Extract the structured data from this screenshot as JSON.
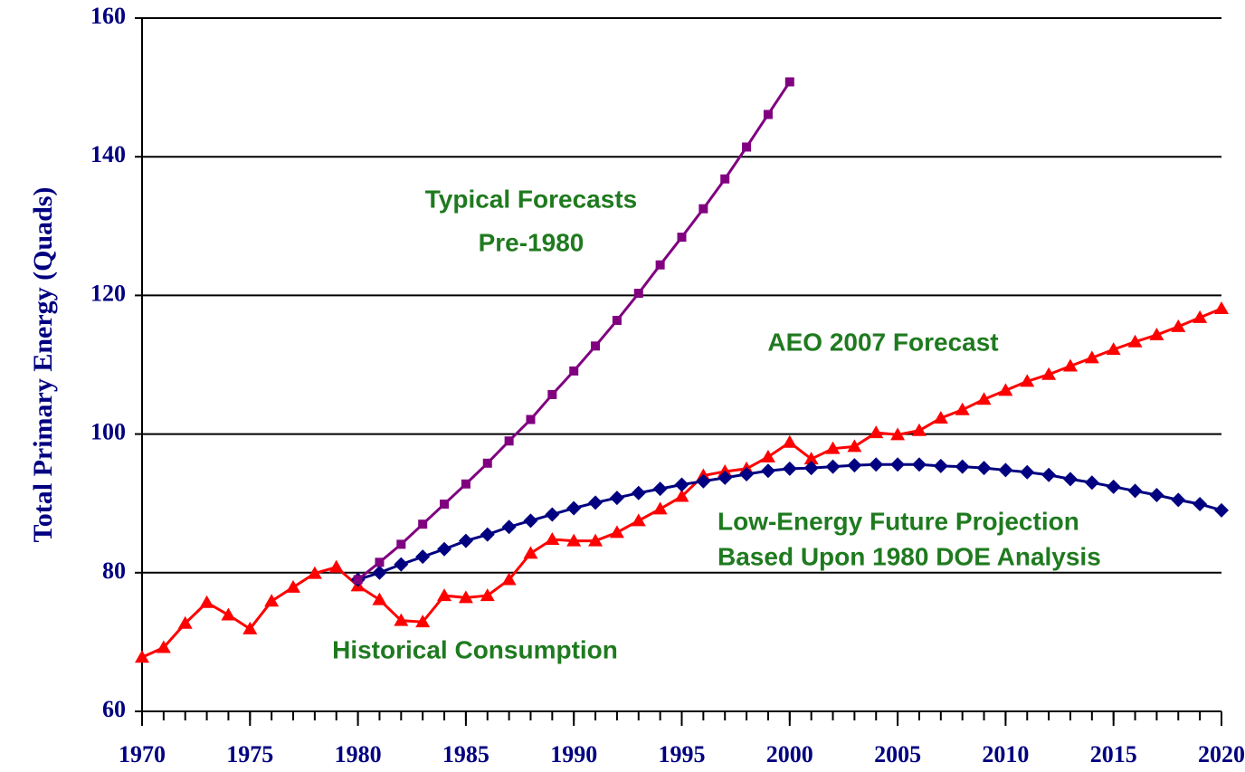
{
  "chart_data": {
    "type": "line",
    "ylabel": "Total Primary Energy (Quads)",
    "x": [
      1970,
      1971,
      1972,
      1973,
      1974,
      1975,
      1976,
      1977,
      1978,
      1979,
      1980,
      1981,
      1982,
      1983,
      1984,
      1985,
      1986,
      1987,
      1988,
      1989,
      1990,
      1991,
      1992,
      1993,
      1994,
      1995,
      1996,
      1997,
      1998,
      1999,
      2000,
      2001,
      2002,
      2003,
      2004,
      2005,
      2006,
      2007,
      2008,
      2009,
      2010,
      2011,
      2012,
      2013,
      2014,
      2015,
      2016,
      2017,
      2018,
      2019,
      2020
    ],
    "series": [
      {
        "name": "Historical Consumption",
        "color": "#ff0000",
        "marker": "triangle",
        "values": [
          67.8,
          69.2,
          72.7,
          75.7,
          73.9,
          71.9,
          75.9,
          77.9,
          79.9,
          80.8,
          78.1,
          76.1,
          73.1,
          72.9,
          76.7,
          76.4,
          76.7,
          79.0,
          82.8,
          84.8,
          84.6,
          84.6,
          85.8,
          87.5,
          89.2,
          91.0,
          94.0,
          94.6,
          95.0,
          96.7,
          98.8,
          96.4,
          97.9,
          98.2,
          100.2,
          99.9,
          100.5,
          102.3,
          103.5,
          105.0,
          106.3,
          107.6,
          108.6,
          109.8,
          111.0,
          112.2,
          113.3,
          114.3,
          115.5,
          116.8,
          118.1
        ]
      },
      {
        "name": "Low-Energy Future Projection",
        "color": "#000080",
        "marker": "diamond",
        "values": [
          null,
          null,
          null,
          null,
          null,
          null,
          null,
          null,
          null,
          null,
          79.0,
          80.0,
          81.2,
          82.3,
          83.4,
          84.6,
          85.5,
          86.6,
          87.5,
          88.4,
          89.3,
          90.1,
          90.8,
          91.5,
          92.1,
          92.7,
          93.2,
          93.7,
          94.2,
          94.7,
          95.0,
          95.1,
          95.3,
          95.5,
          95.6,
          95.6,
          95.6,
          95.4,
          95.3,
          95.1,
          94.8,
          94.5,
          94.1,
          93.5,
          93.0,
          92.4,
          91.8,
          91.2,
          90.5,
          89.9,
          89.0
        ]
      },
      {
        "name": "Typical Forecasts",
        "color": "#800080",
        "marker": "square",
        "values": [
          null,
          null,
          null,
          null,
          null,
          null,
          null,
          null,
          null,
          null,
          79.0,
          81.5,
          84.1,
          87.0,
          89.9,
          92.8,
          95.8,
          99.0,
          102.1,
          105.7,
          109.1,
          112.7,
          116.4,
          120.3,
          124.4,
          128.4,
          132.5,
          136.8,
          141.4,
          146.1,
          150.8,
          null,
          null,
          null,
          null,
          null,
          null,
          null,
          null,
          null,
          null,
          null,
          null,
          null,
          null,
          null,
          null,
          null,
          null,
          null,
          null
        ]
      }
    ],
    "annotations": [
      "Typical Forecasts",
      "Pre-1980",
      "AEO 2007 Forecast",
      "Low-Energy Future Projection",
      "Based Upon 1980 DOE Analysis",
      "Historical Consumption"
    ],
    "annotation_color": "#1f7a1f",
    "xlim": [
      1970,
      2020
    ],
    "xticks": [
      1970,
      1975,
      1980,
      1985,
      1990,
      1995,
      2000,
      2005,
      2010,
      2015,
      2020
    ],
    "ylim": [
      60,
      160
    ],
    "yticks": [
      60,
      80,
      100,
      120,
      140,
      160
    ],
    "grid": true
  }
}
